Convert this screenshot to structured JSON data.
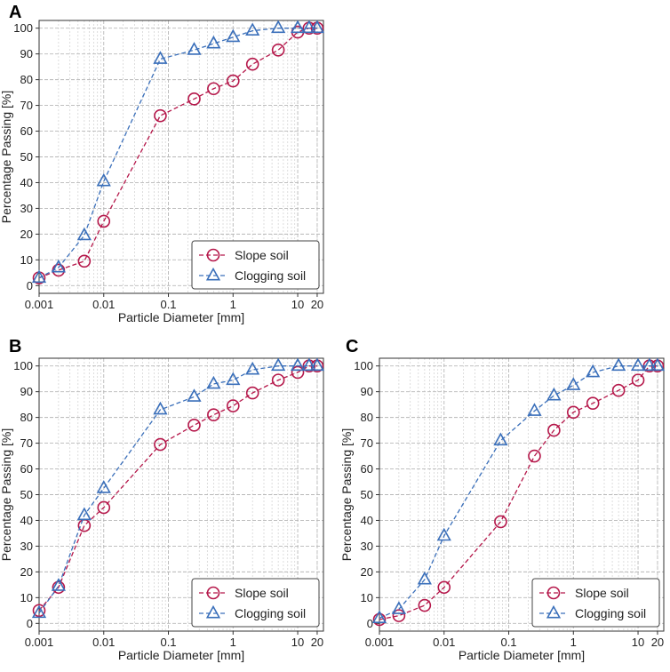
{
  "chart_data": [
    {
      "type": "line",
      "panel_label": "A",
      "xscale": "log",
      "xlabel": "Particle Diameter [mm]",
      "ylabel": "Percentage Passing [%]",
      "xlim": [
        0.001,
        25
      ],
      "ylim": [
        -3,
        103
      ],
      "x_ticks": [
        "0.001",
        "0.01",
        "0.1",
        "1",
        "10",
        "20"
      ],
      "y_ticks": [
        "0",
        "10",
        "20",
        "30",
        "40",
        "50",
        "60",
        "70",
        "80",
        "90",
        "100"
      ],
      "grid": true,
      "legend_position": "bottom-right",
      "series": [
        {
          "name": "Slope soil",
          "marker": "circle",
          "color": "#b5174a",
          "linestyle": "dashed",
          "x": [
            0.001,
            0.002,
            0.005,
            0.01,
            0.075,
            0.25,
            0.5,
            1,
            2,
            5,
            10,
            15,
            20
          ],
          "y": [
            3,
            6,
            9.5,
            25,
            66,
            72.5,
            76.5,
            79.5,
            86,
            91.5,
            98.5,
            100,
            100
          ]
        },
        {
          "name": "Clogging soil",
          "marker": "triangle",
          "color": "#3a6fba",
          "linestyle": "dashed",
          "x": [
            0.001,
            0.002,
            0.005,
            0.01,
            0.075,
            0.25,
            0.5,
            1,
            2,
            5,
            10,
            15,
            20
          ],
          "y": [
            3,
            7,
            19.5,
            40.5,
            88,
            91.5,
            94,
            96.5,
            99,
            100,
            100,
            100,
            100
          ]
        }
      ]
    },
    {
      "type": "line",
      "panel_label": "B",
      "xscale": "log",
      "xlabel": "Particle Diameter [mm]",
      "ylabel": "Percentage Passing [%]",
      "xlim": [
        0.001,
        25
      ],
      "ylim": [
        -3,
        103
      ],
      "x_ticks": [
        "0.001",
        "0.01",
        "0.1",
        "1",
        "10",
        "20"
      ],
      "y_ticks": [
        "0",
        "10",
        "20",
        "30",
        "40",
        "50",
        "60",
        "70",
        "80",
        "90",
        "100"
      ],
      "grid": true,
      "legend_position": "bottom-right",
      "series": [
        {
          "name": "Slope soil",
          "marker": "circle",
          "color": "#b5174a",
          "linestyle": "dashed",
          "x": [
            0.001,
            0.002,
            0.005,
            0.01,
            0.075,
            0.25,
            0.5,
            1,
            2,
            5,
            10,
            15,
            20
          ],
          "y": [
            5,
            14,
            38,
            45,
            69.5,
            77,
            81,
            84.5,
            89.5,
            94.5,
            97.5,
            100,
            100
          ]
        },
        {
          "name": "Clogging soil",
          "marker": "triangle",
          "color": "#3a6fba",
          "linestyle": "dashed",
          "x": [
            0.001,
            0.002,
            0.005,
            0.01,
            0.075,
            0.25,
            0.5,
            1,
            2,
            5,
            10,
            15,
            20
          ],
          "y": [
            4,
            14.5,
            42,
            52.5,
            83,
            88,
            93,
            94.5,
            98.5,
            100,
            100,
            100,
            100
          ]
        }
      ]
    },
    {
      "type": "line",
      "panel_label": "C",
      "xscale": "log",
      "xlabel": "Particle Diameter [mm]",
      "ylabel": "Percentage Passing [%]",
      "xlim": [
        0.001,
        25
      ],
      "ylim": [
        -3,
        103
      ],
      "x_ticks": [
        "0.001",
        "0.01",
        "0.1",
        "1",
        "10",
        "20"
      ],
      "y_ticks": [
        "0",
        "10",
        "20",
        "30",
        "40",
        "50",
        "60",
        "70",
        "80",
        "90",
        "100"
      ],
      "grid": true,
      "legend_position": "bottom-right",
      "series": [
        {
          "name": "Slope soil",
          "marker": "circle",
          "color": "#b5174a",
          "linestyle": "dashed",
          "x": [
            0.001,
            0.002,
            0.005,
            0.01,
            0.075,
            0.25,
            0.5,
            1,
            2,
            5,
            10,
            15,
            20
          ],
          "y": [
            1.5,
            3,
            7,
            14,
            39.5,
            65,
            75,
            82,
            85.5,
            90.5,
            94.5,
            100,
            100
          ]
        },
        {
          "name": "Clogging soil",
          "marker": "triangle",
          "color": "#3a6fba",
          "linestyle": "dashed",
          "x": [
            0.001,
            0.002,
            0.005,
            0.01,
            0.075,
            0.25,
            0.5,
            1,
            2,
            5,
            10,
            15,
            20
          ],
          "y": [
            2,
            5.5,
            17,
            34,
            71,
            82.5,
            88.5,
            92.5,
            97.5,
            100,
            100,
            100,
            100
          ]
        }
      ]
    }
  ]
}
